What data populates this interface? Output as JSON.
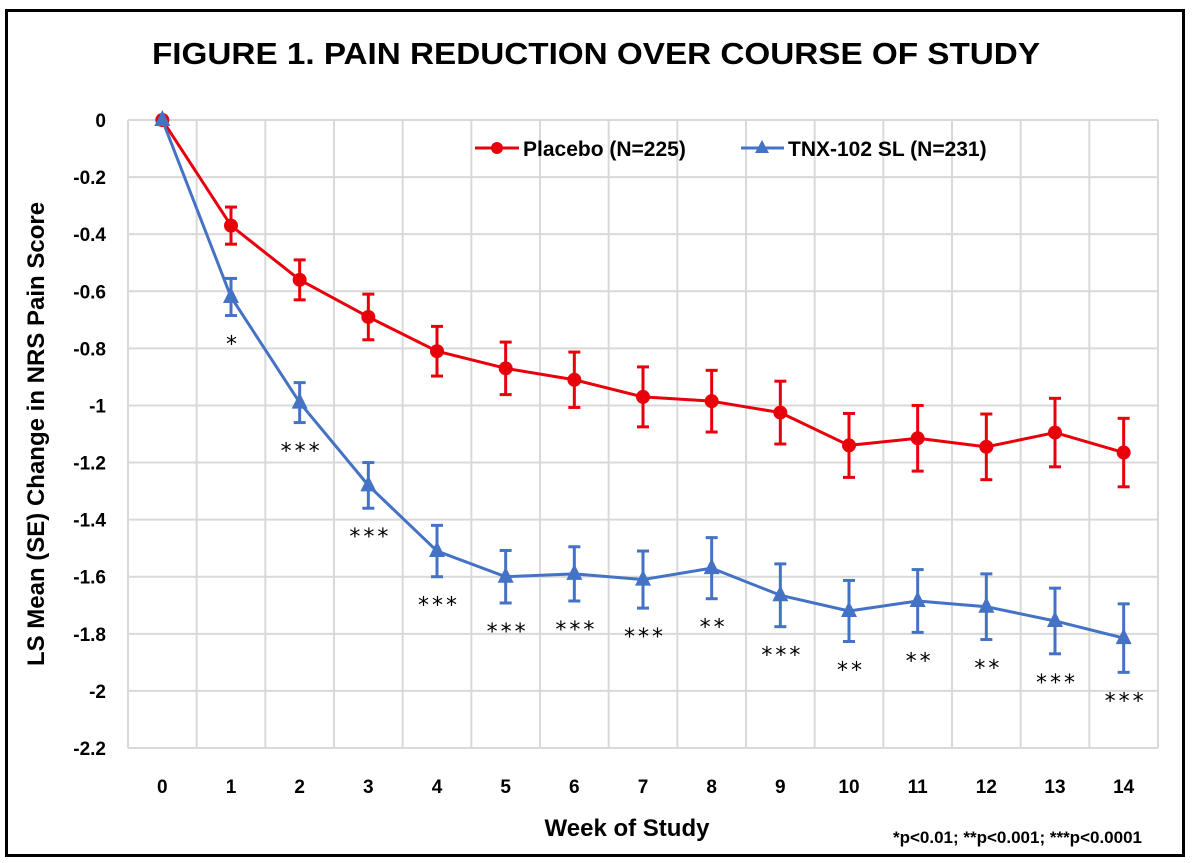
{
  "chart_data": {
    "type": "line",
    "title": "FIGURE 1. PAIN REDUCTION OVER COURSE OF STUDY",
    "xlabel": "Week of Study",
    "ylabel": "LS Mean (SE) Change in NRS Pain Score",
    "categories": [
      "0",
      "1",
      "2",
      "3",
      "4",
      "5",
      "6",
      "7",
      "8",
      "9",
      "10",
      "11",
      "12",
      "13",
      "14"
    ],
    "ylim": [
      -2.2,
      0
    ],
    "yticks": [
      0,
      -0.2,
      -0.4,
      -0.6,
      -0.8,
      -1,
      -1.2,
      -1.4,
      -1.6,
      -1.8,
      -2,
      -2.2
    ],
    "ytick_labels": [
      "0",
      "-0.2",
      "-0.4",
      "-0.6",
      "-0.8",
      "-1",
      "-1.2",
      "-1.4",
      "-1.6",
      "-1.8",
      "-2",
      "-2.2"
    ],
    "grid": true,
    "legend_position": "top-right",
    "series": [
      {
        "name": "Placebo (N=225)",
        "color": "#e8000b",
        "marker": "circle",
        "values": [
          0,
          -0.37,
          -0.56,
          -0.69,
          -0.81,
          -0.87,
          -0.91,
          -0.97,
          -0.985,
          -1.025,
          -1.14,
          -1.115,
          -1.145,
          -1.095,
          -1.165
        ],
        "se": [
          0,
          0.065,
          0.07,
          0.08,
          0.087,
          0.092,
          0.097,
          0.105,
          0.108,
          0.11,
          0.112,
          0.115,
          0.115,
          0.12,
          0.12
        ]
      },
      {
        "name": "TNX-102 SL (N=231)",
        "color": "#4472c4",
        "marker": "triangle",
        "values": [
          0,
          -0.62,
          -0.99,
          -1.28,
          -1.51,
          -1.6,
          -1.59,
          -1.61,
          -1.57,
          -1.665,
          -1.72,
          -1.685,
          -1.705,
          -1.755,
          -1.815
        ],
        "se": [
          0,
          0.065,
          0.07,
          0.08,
          0.09,
          0.092,
          0.095,
          0.1,
          0.107,
          0.11,
          0.107,
          0.11,
          0.115,
          0.115,
          0.12
        ]
      }
    ],
    "significance": [
      "",
      "*",
      "***",
      "***",
      "***",
      "***",
      "***",
      "***",
      "**",
      "***",
      "**",
      "**",
      "**",
      "***",
      "***"
    ],
    "footnote": "*p<0.01; **p<0.001; ***p<0.0001"
  }
}
